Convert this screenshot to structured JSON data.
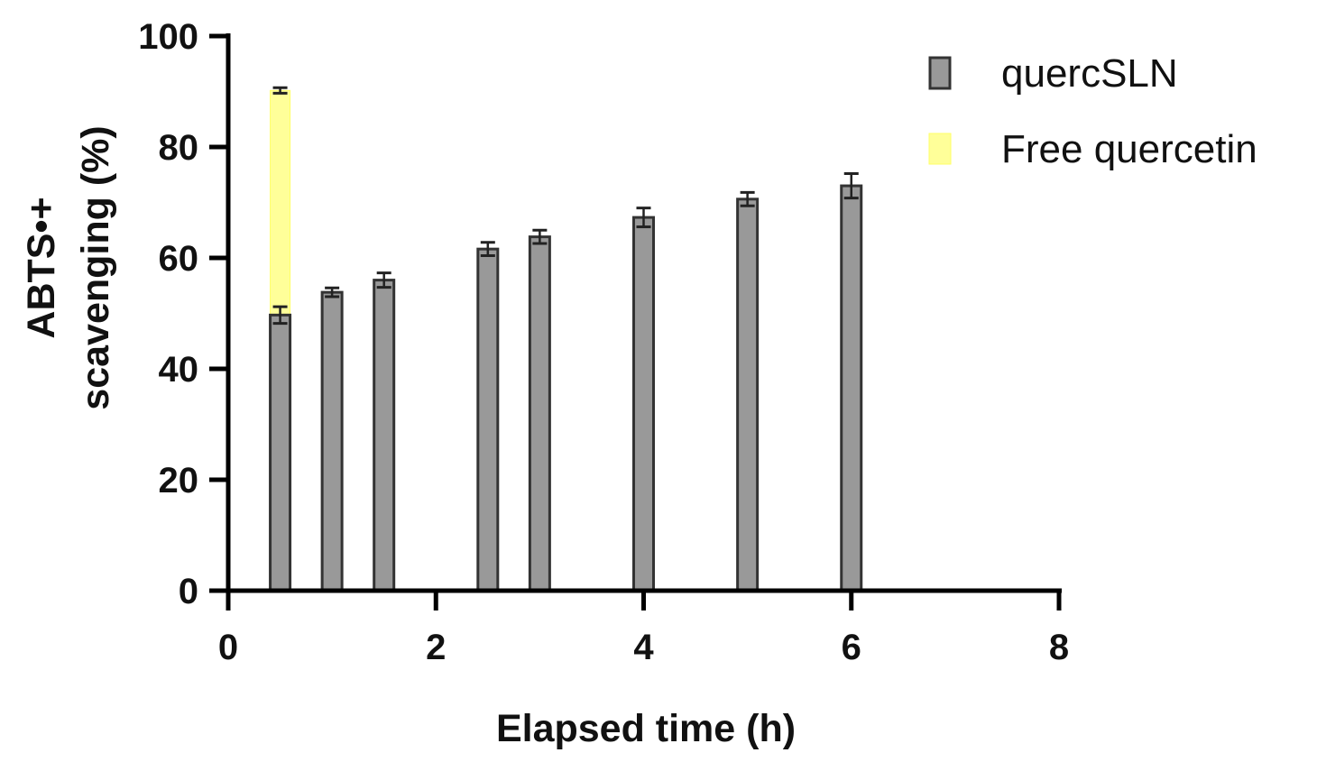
{
  "chart_data": {
    "type": "bar",
    "title": "",
    "xlabel": "Elapsed time (h)",
    "ylabel_lines": [
      "ABTS•+",
      "scavenging (%)"
    ],
    "xlim": [
      0,
      8
    ],
    "ylim": [
      0,
      100
    ],
    "x_ticks": [
      0,
      2,
      4,
      6,
      8
    ],
    "y_ticks": [
      0,
      20,
      40,
      60,
      80,
      100
    ],
    "x_tick_labels": [
      "0",
      "2",
      "4",
      "6",
      "8"
    ],
    "y_tick_labels": [
      "0",
      "20",
      "40",
      "60",
      "80",
      "100"
    ],
    "grid": false,
    "legend_position": "top-right",
    "series": [
      {
        "name": "Free quercetin",
        "color": "#ffff99",
        "x": [
          0.5
        ],
        "values": [
          90.2
        ],
        "errors": [
          0.5
        ]
      },
      {
        "name": "quercSLN",
        "color": "#999999",
        "x": [
          0.5,
          1,
          1.5,
          2.5,
          3,
          4,
          5,
          6
        ],
        "values": [
          49.7,
          53.8,
          56.0,
          61.6,
          63.8,
          67.3,
          70.6,
          73.0
        ],
        "errors": [
          1.5,
          0.8,
          1.3,
          1.2,
          1.2,
          1.7,
          1.2,
          2.2
        ]
      }
    ],
    "legend_order": [
      "quercSLN",
      "Free quercetin"
    ]
  }
}
